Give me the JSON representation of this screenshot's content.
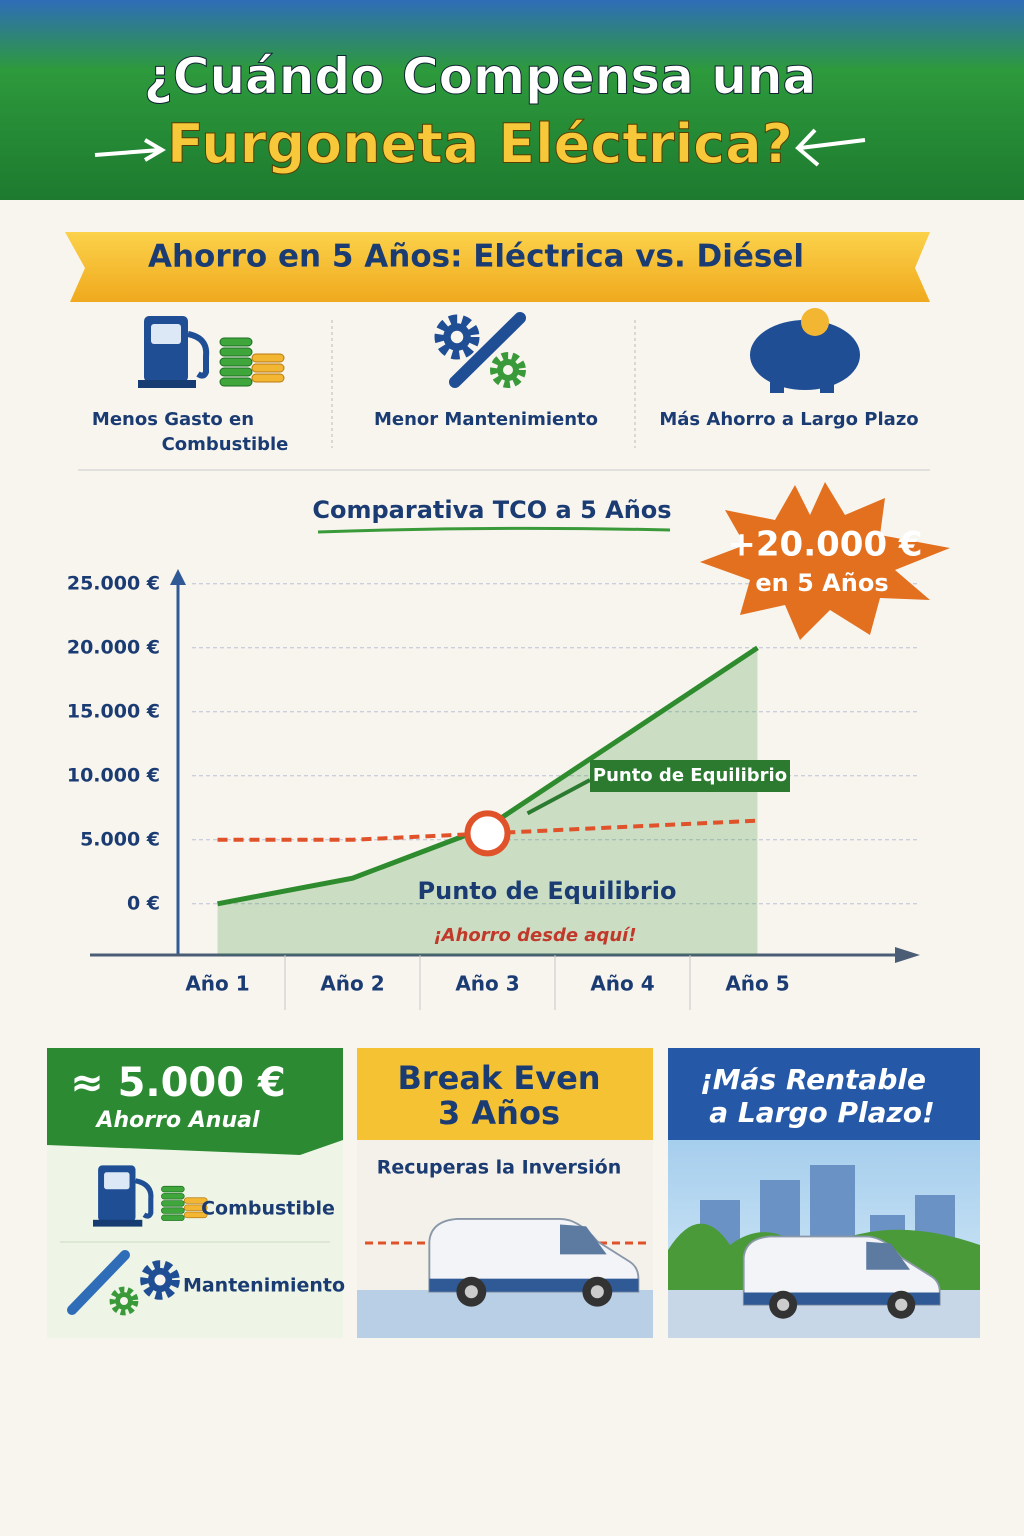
{
  "header": {
    "title_line1": "¿Cuándo Compensa una",
    "title_line2": "Furgoneta Eléctrica?"
  },
  "banner": "Ahorro en 5 Años: Eléctrica vs. Diésel",
  "benefits": [
    {
      "lines": [
        "Menos Gasto en",
        "Combustible"
      ]
    },
    {
      "lines": [
        "Menor Mantenimiento"
      ]
    },
    {
      "lines": [
        "Más Ahorro a Largo Plazo"
      ]
    }
  ],
  "chart_data": {
    "type": "line",
    "title": "Comparativa TCO a 5 Años",
    "categories": [
      "Año 1",
      "Año 2",
      "Año 3",
      "Año 4",
      "Año 5"
    ],
    "series": [
      {
        "color": "#2e8b2e",
        "values": [
          0,
          2000,
          6000,
          13000,
          20000
        ]
      },
      {
        "color": "#e0522a",
        "values": [
          5000,
          5000,
          5500,
          6000,
          6500
        ]
      }
    ],
    "ylim": [
      -4000,
      26000
    ],
    "yticks": [
      {
        "value": 0,
        "label": "0 €"
      },
      {
        "value": 5000,
        "label": "5.000 €"
      },
      {
        "value": 10000,
        "label": "10.000 €"
      },
      {
        "value": 15000,
        "label": "15.000 €"
      },
      {
        "value": 20000,
        "label": "20.000 €"
      },
      {
        "value": 25000,
        "label": "25.000 €"
      }
    ],
    "grid": true,
    "badge": [
      "+20.000 €",
      "en 5 Años"
    ],
    "annotations": [
      "Punto de Equilibrio",
      "Punto de Equilibrio",
      "¡Ahorro desde aquí!"
    ]
  },
  "cards": [
    {
      "lines": [
        "≈ 5.000 €",
        "Ahorro Anual"
      ],
      "items": [
        "Combustible",
        "Mantenimiento"
      ]
    },
    {
      "lines": [
        "Break Even",
        "3 Años"
      ],
      "items": [
        "Recuperas la Inversión"
      ]
    },
    {
      "lines": [
        "¡Más Rentable",
        "a Largo Plazo!"
      ]
    }
  ]
}
